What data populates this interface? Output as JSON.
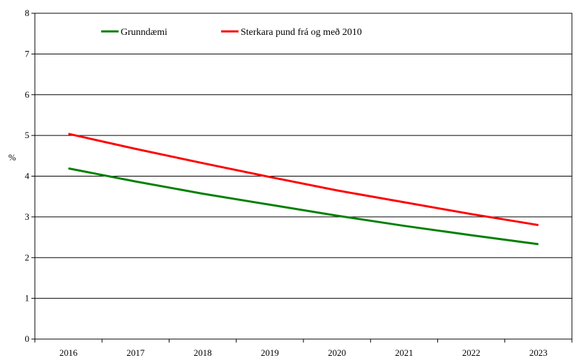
{
  "chart_data": {
    "type": "line",
    "title": "",
    "xlabel": "",
    "ylabel": "%",
    "x": [
      "2016",
      "2017",
      "2018",
      "2019",
      "2020",
      "2021",
      "2022",
      "2023"
    ],
    "ylim": [
      0,
      8
    ],
    "yticks": [
      "0",
      "1",
      "2",
      "3",
      "4",
      "5",
      "6",
      "7",
      "8"
    ],
    "grid": "horizontal",
    "legend_position": "top",
    "series": [
      {
        "name": "Grunndæmi",
        "color": "#008000",
        "values": [
          4.19,
          3.87,
          3.57,
          3.3,
          3.03,
          2.78,
          2.55,
          2.33
        ]
      },
      {
        "name": "Sterkara pund frá og með 2010",
        "color": "#ff0000",
        "values": [
          5.04,
          4.67,
          4.32,
          3.98,
          3.65,
          3.36,
          3.07,
          2.8
        ]
      }
    ]
  }
}
